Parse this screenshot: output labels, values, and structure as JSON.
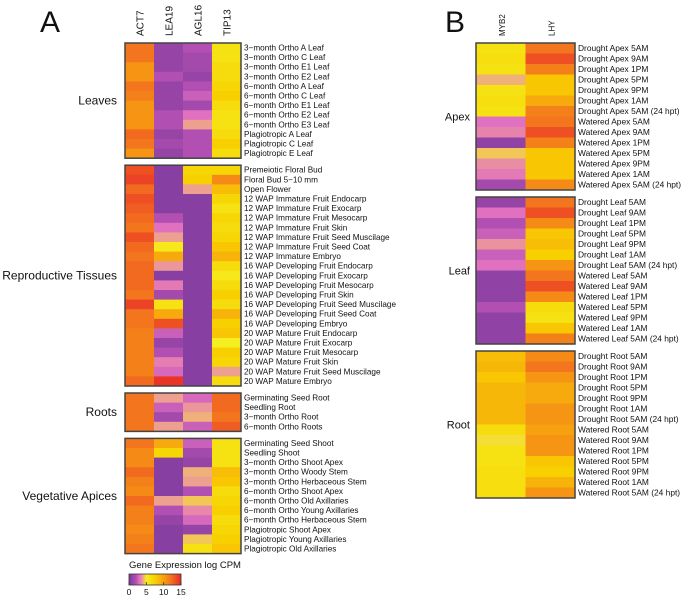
{
  "chart_data": [
    {
      "type": "heatmap",
      "panel_label": "A",
      "columns": [
        "ACT7",
        "LEA19",
        "AGL16",
        "TIP13"
      ],
      "groups": [
        {
          "name": "Leaves",
          "rows": [
            "3−month Ortho A Leaf",
            "3−month Ortho C Leaf",
            "3−month Ortho E1 Leaf",
            "3−month Ortho E2 Leaf",
            "6−month Ortho A Leaf",
            "6−month Ortho C Leaf",
            "6−month Ortho E1 Leaf",
            "6−month Ortho E2 Leaf",
            "6−month Ortho E3 Leaf",
            "Plagiotropic A Leaf",
            "Plagiotropic C Leaf",
            "Plagiotropic E Leaf"
          ],
          "values": [
            [
              12,
              1,
              2,
              6
            ],
            [
              12,
              1,
              1.5,
              6
            ],
            [
              10.5,
              1,
              1.5,
              6.5
            ],
            [
              10.5,
              2,
              1,
              6.5
            ],
            [
              12,
              1,
              2,
              7
            ],
            [
              11.5,
              1,
              2.5,
              7.5
            ],
            [
              10.5,
              1,
              1.5,
              6.5
            ],
            [
              10.5,
              2,
              3,
              6
            ],
            [
              10.5,
              2,
              4,
              6
            ],
            [
              12.5,
              1,
              2,
              6.5
            ],
            [
              12,
              1.5,
              2,
              7.5
            ],
            [
              10.5,
              1,
              2,
              6.5
            ]
          ]
        },
        {
          "name": "Reproductive Tissues",
          "rows": [
            "Premeiotic Floral Bud",
            "Floral Bud 5−10 mm",
            "Open Flower",
            "12 WAP Immature Fruit Endocarp",
            "12 WAP Immature Fruit Exocarp",
            "12 WAP Immature Fruit Mesocarp",
            "12 WAP Immature Fruit Skin",
            "12 WAP Immature Fruit Seed Muscilage",
            "12 WAP Immature Fruit Seed Coat",
            "12 WAP Immature Embryo",
            "16 WAP Developing Fruit Endocarp",
            "16 WAP Developing Fruit Exocarp",
            "16 WAP Developing Fruit Mesocarp",
            "16 WAP Developing Fruit Skin",
            "16 WAP Developing Fruit Seed Muscilage",
            "16 WAP Developing Fruit Seed Coat",
            "16 WAP Developing Embryo",
            "20 WAP Mature Fruit Endocarp",
            "20 WAP Mature Fruit Exocarp",
            "20 WAP Mature Fruit Mesocarp",
            "20 WAP Mature Fruit Skin",
            "20 WAP Mature Fruit Seed Muscilage",
            "20 WAP Mature Embryo"
          ],
          "values": [
            [
              13.5,
              0.5,
              7,
              7
            ],
            [
              14,
              0.5,
              7.5,
              11
            ],
            [
              12.5,
              0.5,
              4,
              8.5
            ],
            [
              13.5,
              0.5,
              0.5,
              7
            ],
            [
              13,
              0.5,
              0.5,
              6
            ],
            [
              12.5,
              2,
              0.5,
              7
            ],
            [
              12,
              3,
              0.5,
              6.5
            ],
            [
              13.5,
              4,
              0.5,
              7
            ],
            [
              12.5,
              5.5,
              0.5,
              8
            ],
            [
              12,
              9.5,
              0.5,
              9
            ],
            [
              12.5,
              3.8,
              0.5,
              6.5
            ],
            [
              12.5,
              0.5,
              0.5,
              5.5
            ],
            [
              12.5,
              3.2,
              0.5,
              6.5
            ],
            [
              12,
              1.5,
              0.5,
              7.5
            ],
            [
              14,
              6,
              0.5,
              6.5
            ],
            [
              12,
              9.5,
              0.5,
              9
            ],
            [
              12,
              13.5,
              0.5,
              7.5
            ],
            [
              11.5,
              2.5,
              0.5,
              8
            ],
            [
              11.5,
              1,
              0.5,
              5
            ],
            [
              11.5,
              2,
              0.5,
              7.5
            ],
            [
              11.5,
              3.3,
              0.5,
              7
            ],
            [
              11.5,
              2.8,
              0.5,
              4
            ],
            [
              12.5,
              14.5,
              0.5,
              6.5
            ]
          ]
        },
        {
          "name": "Roots",
          "rows": [
            "Germinating Seed Root",
            "Seedling Root",
            "3−month Ortho Root",
            "6−month Ortho Roots"
          ],
          "values": [
            [
              12,
              4,
              2.8,
              12.5
            ],
            [
              12,
              2.5,
              3.8,
              12.5
            ],
            [
              12,
              1.5,
              4.2,
              12
            ],
            [
              12,
              4,
              2.5,
              13
            ]
          ]
        },
        {
          "name": "Vegetative Apices",
          "rows": [
            "Germinating Seed Shoot",
            "Seedling Shoot",
            "3−month Ortho Shoot Apex",
            "3−month Ortho Woody Stem",
            "3−month Ortho Herbaceous Stem",
            "6−month Ortho Shoot Apex",
            "6−month Ortho Old Axillaries",
            "6−month Ortho Young Axillaries",
            "6−month Ortho Herbaceous Stem",
            "Plagiotropic Shoot Apex",
            "Plagiotropic Young Axillaries",
            "Plagiotropic Old Axillaries"
          ],
          "values": [
            [
              12,
              9.5,
              2.5,
              6
            ],
            [
              11,
              7,
              1.5,
              6
            ],
            [
              11,
              0.5,
              1,
              6
            ],
            [
              12.5,
              0.5,
              4.2,
              8.5
            ],
            [
              11.5,
              0.5,
              4,
              8
            ],
            [
              11,
              0.5,
              2,
              6.5
            ],
            [
              12.5,
              4,
              4.5,
              7
            ],
            [
              11.5,
              2,
              3.5,
              7.5
            ],
            [
              11.5,
              1,
              2.8,
              6.5
            ],
            [
              11,
              0.5,
              1,
              7
            ],
            [
              11.5,
              0.5,
              4.5,
              7.5
            ],
            [
              12,
              0.5,
              6,
              8
            ]
          ]
        }
      ],
      "legend": {
        "title": "Gene Expression log CPM",
        "ticks": [
          "0",
          "5",
          "10",
          "15"
        ],
        "range": [
          0,
          15
        ]
      }
    },
    {
      "type": "heatmap",
      "panel_label": "B",
      "columns": [
        "MYB2",
        "LHY"
      ],
      "groups": [
        {
          "name": "Apex",
          "rows": [
            "Drought Apex 5AM",
            "Drought Apex 9AM",
            "Drought Apex 1PM",
            "Drought Apex 5PM",
            "Drought Apex 9PM",
            "Drought Apex 1AM",
            "Drought Apex 5AM (24 hpt)",
            "Watered Apex 5AM",
            "Watered Apex 9AM",
            "Watered Apex 1PM",
            "Watered Apex 5PM",
            "Watered Apex 9PM",
            "Watered Apex 1AM",
            "Watered Apex 5AM (24 hpt)"
          ],
          "values": [
            [
              6,
              12
            ],
            [
              6.3,
              13.5
            ],
            [
              6,
              11.5
            ],
            [
              4.2,
              8
            ],
            [
              6,
              8
            ],
            [
              6.3,
              9.5
            ],
            [
              6,
              11.5
            ],
            [
              3,
              12
            ],
            [
              3.4,
              13.5
            ],
            [
              0.8,
              11.5
            ],
            [
              4.5,
              8
            ],
            [
              3.6,
              8
            ],
            [
              3.2,
              8
            ],
            [
              1.5,
              11
            ]
          ]
        },
        {
          "name": "Leaf",
          "rows": [
            "Drought Leaf 5AM",
            "Drought Leaf 9AM",
            "Drought Leaf 1PM",
            "Drought Leaf 5PM",
            "Drought Leaf 9PM",
            "Drought Leaf 1AM",
            "Drought Leaf 5AM (24 hpt)",
            "Watered Leaf 5AM",
            "Watered Leaf 9AM",
            "Watered Leaf 1PM",
            "Watered Leaf 5PM",
            "Watered Leaf 9PM",
            "Watered Leaf 1AM",
            "Watered Leaf 5AM (24 hpt)"
          ],
          "values": [
            [
              1,
              12
            ],
            [
              3,
              13.5
            ],
            [
              2,
              11
            ],
            [
              2.5,
              8
            ],
            [
              3.7,
              8.5
            ],
            [
              2.5,
              7.5
            ],
            [
              3,
              10.5
            ],
            [
              0.8,
              12
            ],
            [
              0.8,
              13.5
            ],
            [
              0.8,
              11
            ],
            [
              2,
              6.5
            ],
            [
              0.8,
              6
            ],
            [
              0.8,
              8
            ],
            [
              0.8,
              11.5
            ]
          ]
        },
        {
          "name": "Root",
          "rows": [
            "Drought Root 5AM",
            "Drought Root 9AM",
            "Drought Root 1PM",
            "Drought Root 5PM",
            "Drought Root 9PM",
            "Drought Root 1AM",
            "Drought Root 5AM (24 hpt)",
            "Watered Root 5AM",
            "Watered Root 9AM",
            "Watered Root 1PM",
            "Watered Root 5PM",
            "Watered Root 9PM",
            "Watered Root 1AM",
            "Watered Root 5AM (24 hpt)"
          ],
          "values": [
            [
              8.5,
              11
            ],
            [
              8.8,
              12
            ],
            [
              8,
              10.5
            ],
            [
              8.8,
              9.5
            ],
            [
              8.8,
              9.5
            ],
            [
              8.8,
              10.5
            ],
            [
              8.8,
              10.5
            ],
            [
              6.5,
              10
            ],
            [
              4.8,
              10.5
            ],
            [
              6,
              10.5
            ],
            [
              6,
              8
            ],
            [
              6.3,
              7.5
            ],
            [
              6.3,
              9
            ],
            [
              6.3,
              10.5
            ]
          ]
        }
      ]
    }
  ],
  "colormap": [
    {
      "v": 0,
      "c": "#7a3a9c"
    },
    {
      "v": 2,
      "c": "#b24fb2"
    },
    {
      "v": 3,
      "c": "#e070c0"
    },
    {
      "v": 4,
      "c": "#eea090"
    },
    {
      "v": 5,
      "c": "#f5ee20"
    },
    {
      "v": 7.5,
      "c": "#f8d000"
    },
    {
      "v": 10,
      "c": "#f7a010"
    },
    {
      "v": 12.5,
      "c": "#f26a20"
    },
    {
      "v": 15,
      "c": "#e82828"
    }
  ]
}
